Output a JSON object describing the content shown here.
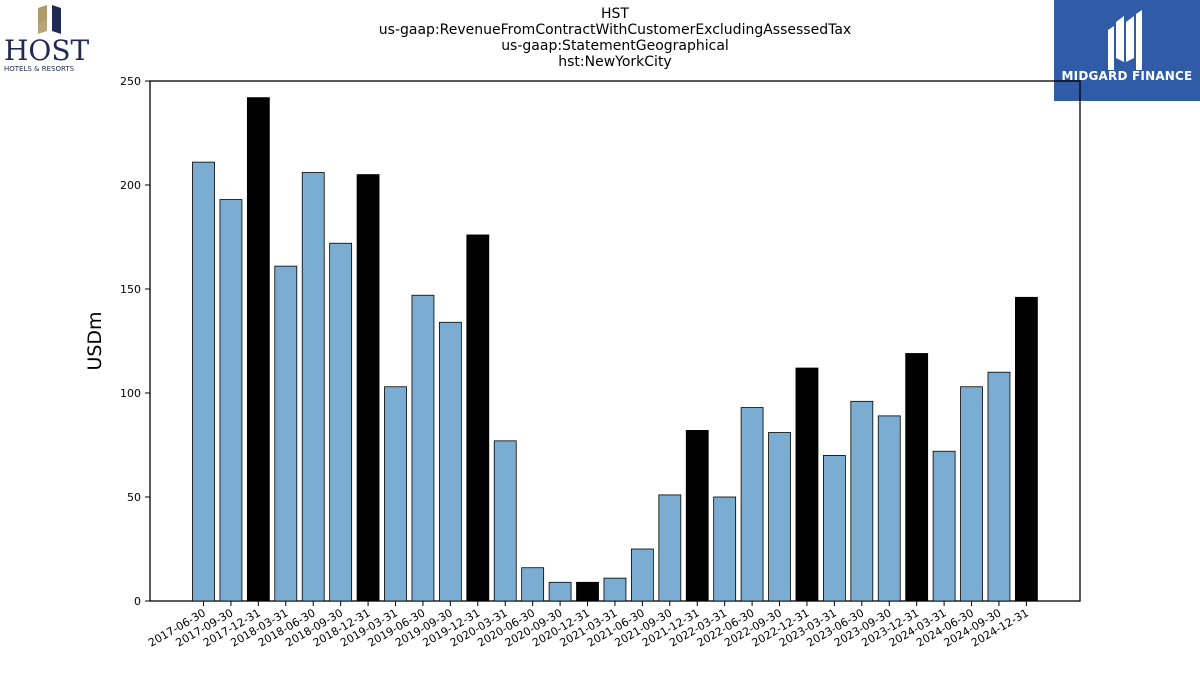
{
  "header": {
    "title_lines": [
      "HST",
      "us-gaap:RevenueFromContractWithCustomerExcludingAssessedTax",
      "us-gaap:StatementGeographical",
      "hst:NewYorkCity"
    ]
  },
  "logos": {
    "host": {
      "name": "HOST",
      "tagline": "HOTELS & RESORTS"
    },
    "midgard": {
      "name": "MIDGARD FINANCE",
      "bg": "#2f5ba7"
    }
  },
  "colors": {
    "quarter_bar": "#7bacd2",
    "year_end_bar": "#000000",
    "edge": "#000000"
  },
  "chart_data": {
    "type": "bar",
    "title": "",
    "xlabel": "",
    "ylabel": "USDm",
    "ylim": [
      0,
      250
    ],
    "yticks": [
      0,
      50,
      100,
      150,
      200,
      250
    ],
    "grid": false,
    "categories": [
      "2017-06-30",
      "2017-09-30",
      "2017-12-31",
      "2018-03-31",
      "2018-06-30",
      "2018-09-30",
      "2018-12-31",
      "2019-03-31",
      "2019-06-30",
      "2019-09-30",
      "2019-12-31",
      "2020-03-31",
      "2020-06-30",
      "2020-09-30",
      "2020-12-31",
      "2021-03-31",
      "2021-06-30",
      "2021-09-30",
      "2021-12-31",
      "2022-03-31",
      "2022-06-30",
      "2022-09-30",
      "2022-12-31",
      "2023-03-31",
      "2023-06-30",
      "2023-09-30",
      "2023-12-31",
      "2024-03-31",
      "2024-06-30",
      "2024-09-30",
      "2024-12-31"
    ],
    "values": [
      211,
      193,
      242,
      161,
      206,
      172,
      205,
      103,
      147,
      134,
      176,
      77,
      16,
      9,
      9,
      11,
      25,
      51,
      82,
      50,
      93,
      81,
      112,
      70,
      96,
      89,
      119,
      72,
      103,
      110,
      146
    ]
  }
}
